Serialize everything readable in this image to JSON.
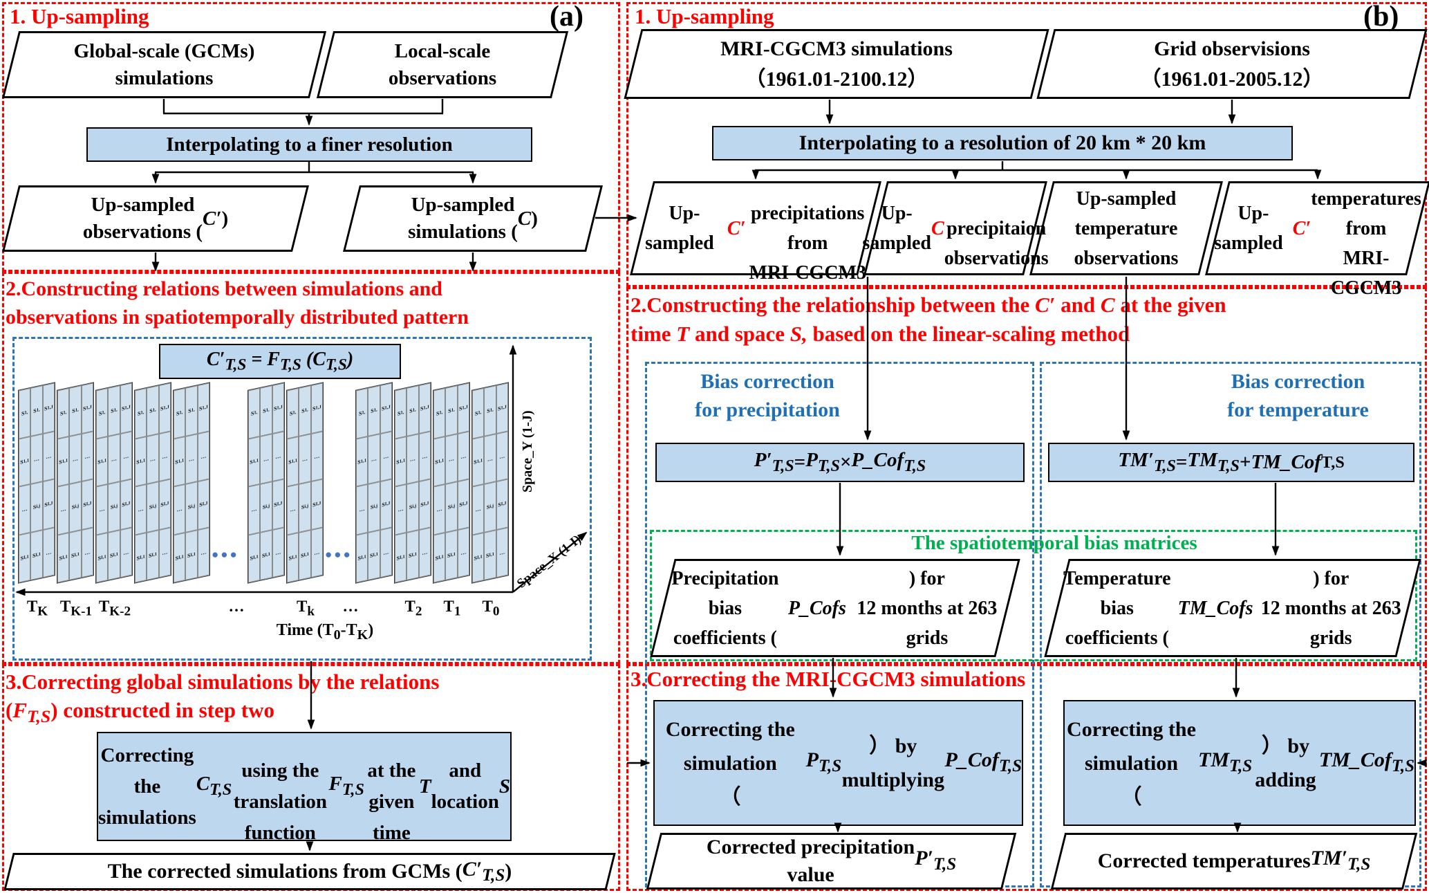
{
  "colors": {
    "accent_red": "#ff0000",
    "box_fill_blue": "#bdd7ee",
    "dashed_blue": "#2e75b6",
    "text_blue": "#1f6fb5",
    "dashed_green": "#00b050",
    "dots_blue": "#4472c4"
  },
  "panel_a": {
    "label": "(a)",
    "step1": {
      "title": "1. Up-sampling",
      "global_box": "Global-scale (GCMs)<br>simulations",
      "local_box": "Local-scale<br>observations",
      "interpolate_box": "Interpolating to a finer resolution",
      "upsampled_obs": "Up-sampled<br>observations (<i>C′</i>)",
      "upsampled_sim": "Up-sampled<br>simulations (<i>C</i>)"
    },
    "step2": {
      "title": "2.Constructing relations  between  simulations and<br>observations in spatiotemporally distributed pattern",
      "formula": "<i>C′<sub>T,S</sub> = F<sub>T,S</sub> (C<sub>T,S</sub>)</i>",
      "axis_y": "Space_Y (1-J)",
      "axis_x": "Space_X (1-I)",
      "time_axis_label": "Time (T<sub>0</sub>-T<sub>K</sub>)",
      "dots": "●●●",
      "time_labels": [
        "T<sub>K</sub>",
        "T<sub>K-1</sub>",
        "T<sub>K-2</sub>",
        "…",
        "T<sub>k</sub>",
        "…",
        "T<sub>2</sub>",
        "T<sub>1</sub>",
        "T<sub>0</sub>"
      ],
      "grid_rows": [
        [
          "S<sub>1,</sub>",
          "S<sub>1,</sub>",
          "S<sub>1,J</sub>"
        ],
        [
          "S<sub>1,1</sub>",
          "…",
          "…"
        ],
        [
          "…",
          "S<sub>i,j</sub>",
          "S<sub>I,J</sub>"
        ],
        [
          "S<sub>I,1</sub>",
          "S<sub>I,1</sub>",
          "…"
        ]
      ]
    },
    "step3": {
      "title": "3.Correcting global simulations by the relations<br>(<i>F<sub>T,S</sub></i>) constructed in step two",
      "correct_box": "Correcting the simulations <i>C<sub>T,S</sub></i><br>using the translation function <i>F<sub>T,S</sub></i><br>at the given time <i>T</i> and location <i>S</i>",
      "output_box": "The corrected simulations from GCMs (<i>C′<sub>T,S</sub></i>)"
    }
  },
  "panel_b": {
    "label": "(b)",
    "step1": {
      "title": "1. Up-sampling",
      "mri_box": "MRI-CGCM3 simulations<br>（1961.01-2100.12）",
      "grid_obs_box": "Grid observisions<br>（1961.01-2005.12）",
      "interpolate_box": "Interpolating to a resolution of 20 km * 20 km",
      "up_precip_sim": "Up-sampled&nbsp;&nbsp; <span class='red'><i>C′</i></span><br>precipitations  from<br>MRI-CGCM3",
      "up_precip_obs": "Up-sampled <span class='red'><i>C</i></span><br>precipitaion<br>observations",
      "up_temp_obs": "Up-sampled<br>temperature<br>observations",
      "up_temp_sim": "Up-sampled&nbsp;&nbsp; <span class='red'><i>C′</i></span><br>temperatures  from<br>MRI-CGCM3"
    },
    "step2": {
      "title": "2.Constructing the relationship between the <i>C′</i> and <i>C</i> at the given<br>time <i>T</i> and space <i>S,</i> based on the  linear-scaling method",
      "bias_precip": "Bias correction<br>for precipitation",
      "bias_temp": "Bias correction<br>for temperature",
      "formula_p": "<i>P′<sub>T,S</sub></i> = <i>P<sub>T,S</sub></i> × <i>P_Cof<sub>T,S</sub></i>",
      "formula_tm": "<i>TM′<sub>T,S</sub></i> =<i>TM<sub>T,S</sub></i> + <i>TM_Cof</i><sub>T,S</sub>",
      "green_title": "The spatiotemporal bias matrices",
      "coef_p": "Precipitation bias<br>coefficients (<i>P_Cofs</i>) for<br>12 months at 263 grids",
      "coef_tm": "Temperature bias<br>coefficients (<i>TM_Cofs</i>) for<br>12 months at 263 grids"
    },
    "step3": {
      "title": "3.Correcting the MRI-CGCM3 simulations",
      "correct_p": "Correcting the simulation<br>（<i>P<sub>T,S</sub></i>） by multiplying<br><i>P_Cof<sub>T,S</sub></i>",
      "correct_tm": "Correcting the simulation<br>（<i>TM<sub>T,S</sub></i>） by adding<br><i>TM_Cof<sub>T,S</sub></i>",
      "out_p": "Corrected precipitation<br>value <i>P′<sub>T,S</sub></i>",
      "out_tm": "Corrected temperatures<br><i>TM′<sub>T,S</sub></i>"
    }
  }
}
